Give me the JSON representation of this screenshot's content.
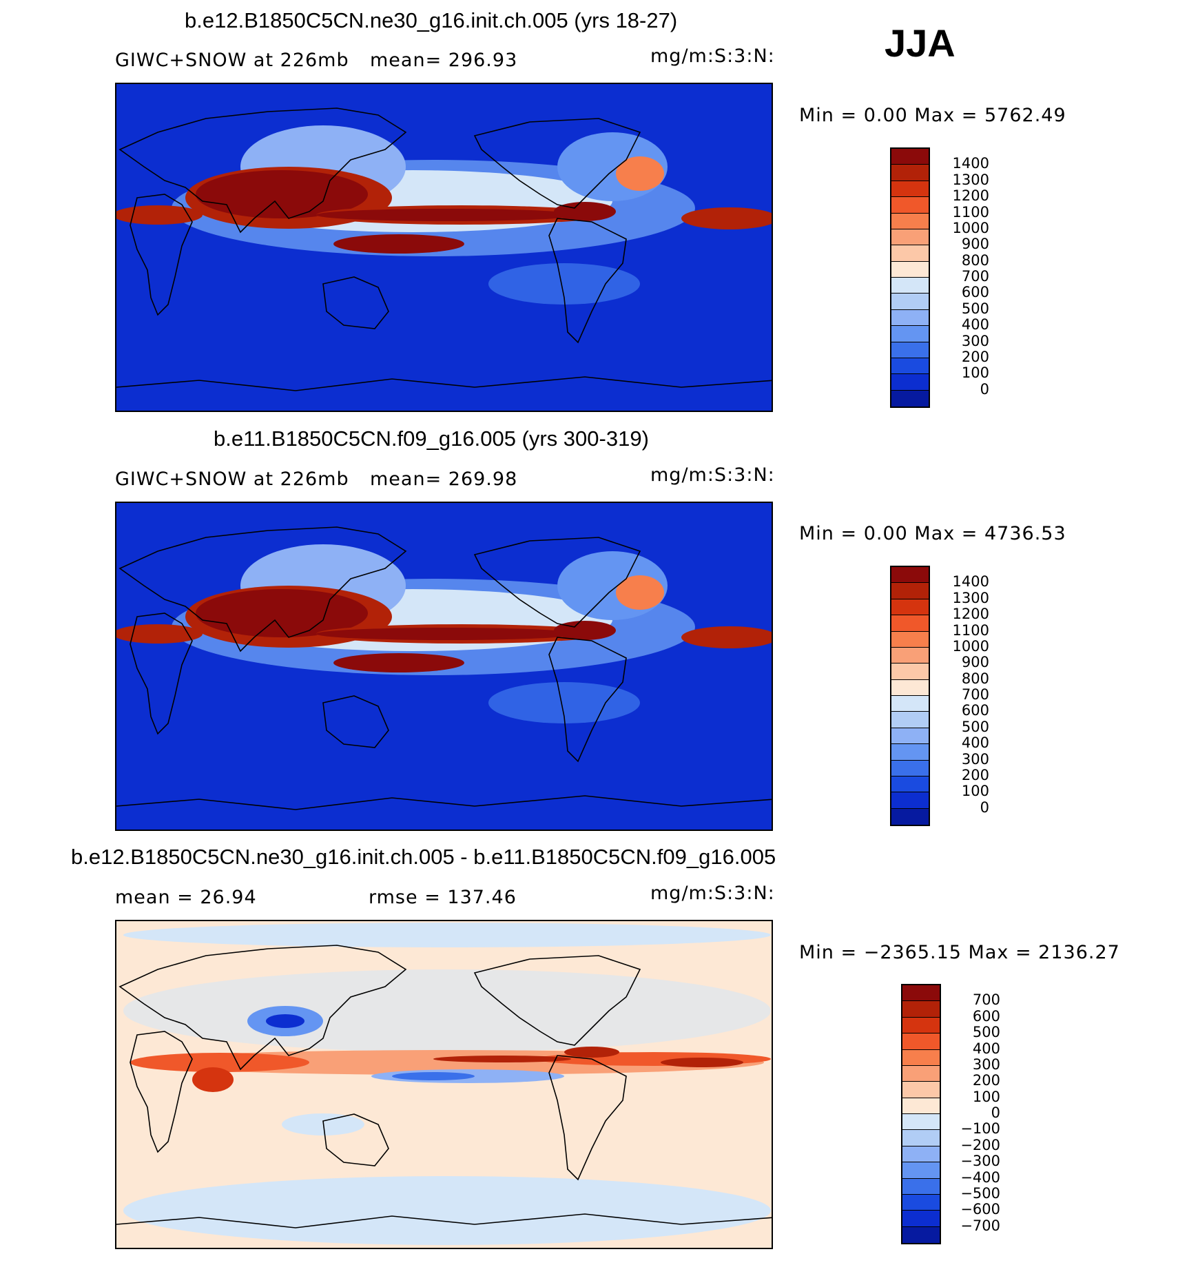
{
  "season": "JJA",
  "panels": [
    {
      "title": "b.e12.B1850C5CN.ne30_g16.init.ch.005 (yrs 18-27)",
      "left_info": "GIWC+SNOW at 226mb",
      "mid_info": "mean= 296.93",
      "units": "mg/m:S:3:N:",
      "minmax": "Min =    0.00 Max = 5762.49",
      "levels": [
        "1400",
        "1300",
        "1200",
        "1100",
        "1000",
        "900",
        "800",
        "700",
        "600",
        "500",
        "400",
        "300",
        "200",
        "100",
        "0"
      ],
      "colors": [
        "#8b0a0a",
        "#b22208",
        "#d5340f",
        "#f0582a",
        "#f77f4c",
        "#f9a077",
        "#fcc8a8",
        "#fde8d5",
        "#d4e6f8",
        "#b1cdf5",
        "#8eb1f5",
        "#6495f2",
        "#3a70ea",
        "#1a4be0",
        "#0c2ed0",
        "#061aa0"
      ],
      "kind": "abs"
    },
    {
      "title": "b.e11.B1850C5CN.f09_g16.005 (yrs 300-319)",
      "left_info": "GIWC+SNOW at 226mb",
      "mid_info": "mean= 269.98",
      "units": "mg/m:S:3:N:",
      "minmax": "Min =    0.00 Max = 4736.53",
      "levels": [
        "1400",
        "1300",
        "1200",
        "1100",
        "1000",
        "900",
        "800",
        "700",
        "600",
        "500",
        "400",
        "300",
        "200",
        "100",
        "0"
      ],
      "colors": [
        "#8b0a0a",
        "#b22208",
        "#d5340f",
        "#f0582a",
        "#f77f4c",
        "#f9a077",
        "#fcc8a8",
        "#fde8d5",
        "#d4e6f8",
        "#b1cdf5",
        "#8eb1f5",
        "#6495f2",
        "#3a70ea",
        "#1a4be0",
        "#0c2ed0",
        "#061aa0"
      ],
      "kind": "abs"
    },
    {
      "title": "b.e12.B1850C5CN.ne30_g16.init.ch.005 - b.e11.B1850C5CN.f09_g16.005",
      "left_info": "mean =   26.94",
      "mid_info": "rmse =  137.46",
      "units": "mg/m:S:3:N:",
      "minmax": "Min = −2365.15 Max = 2136.27",
      "levels": [
        "700",
        "600",
        "500",
        "400",
        "300",
        "200",
        "100",
        "0",
        "−100",
        "−200",
        "−300",
        "−400",
        "−500",
        "−600",
        "−700"
      ],
      "colors": [
        "#8b0a0a",
        "#b22208",
        "#d5340f",
        "#f0582a",
        "#f77f4c",
        "#f9a077",
        "#fcc8a8",
        "#fde8d5",
        "#d4e6f8",
        "#b1cdf5",
        "#8eb1f5",
        "#6495f2",
        "#3a70ea",
        "#1a4be0",
        "#0c2ed0",
        "#061aa0"
      ],
      "kind": "diff"
    }
  ]
}
